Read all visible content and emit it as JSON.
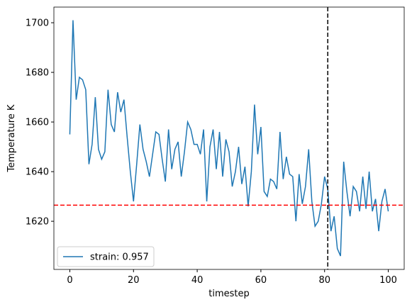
{
  "chart_data": {
    "type": "line",
    "xlabel": "timestep",
    "ylabel": "Temperature K",
    "x": [
      0,
      1,
      2,
      3,
      4,
      5,
      6,
      7,
      8,
      9,
      10,
      11,
      12,
      13,
      14,
      15,
      16,
      17,
      18,
      19,
      20,
      21,
      22,
      23,
      24,
      25,
      26,
      27,
      28,
      29,
      30,
      31,
      32,
      33,
      34,
      35,
      36,
      37,
      38,
      39,
      40,
      41,
      42,
      43,
      44,
      45,
      46,
      47,
      48,
      49,
      50,
      51,
      52,
      53,
      54,
      55,
      56,
      57,
      58,
      59,
      60,
      61,
      62,
      63,
      64,
      65,
      66,
      67,
      68,
      69,
      70,
      71,
      72,
      73,
      74,
      75,
      76,
      77,
      78,
      79,
      80,
      81,
      82,
      83,
      84,
      85,
      86,
      87,
      88,
      89,
      90,
      91,
      92,
      93,
      94,
      95,
      96,
      97,
      98,
      99,
      100
    ],
    "series": [
      {
        "name": "strain: 0.957",
        "color": "#1f77b4",
        "values": [
          1655,
          1701,
          1669,
          1678,
          1677,
          1673,
          1643,
          1651,
          1670,
          1649,
          1645,
          1648,
          1673,
          1659,
          1656,
          1672,
          1664,
          1669,
          1654,
          1640,
          1628,
          1643,
          1659,
          1649,
          1644,
          1638,
          1647,
          1656,
          1655,
          1645,
          1636,
          1657,
          1641,
          1649,
          1652,
          1638,
          1648,
          1660,
          1657,
          1651,
          1651,
          1647,
          1657,
          1628,
          1650,
          1657,
          1641,
          1656,
          1638,
          1653,
          1648,
          1634,
          1640,
          1650,
          1635,
          1642,
          1626,
          1640,
          1667,
          1647,
          1658,
          1632,
          1630,
          1637,
          1636,
          1633,
          1656,
          1637,
          1646,
          1639,
          1638,
          1620,
          1639,
          1627,
          1634,
          1649,
          1628,
          1618,
          1620,
          1627,
          1638,
          1633,
          1616,
          1622,
          1609,
          1606,
          1644,
          1632,
          1622,
          1634,
          1632,
          1624,
          1638,
          1625,
          1640,
          1624,
          1629,
          1616,
          1628,
          1633,
          1624
        ]
      }
    ],
    "hlines": [
      {
        "value": 1626.5,
        "color": "#ff0000"
      }
    ],
    "vlines": [
      {
        "value": 81,
        "color": "#000000"
      }
    ],
    "xlim": [
      -5,
      105
    ],
    "ylim": [
      1600.6,
      1706.3
    ],
    "xticks": [
      0,
      20,
      40,
      60,
      80,
      100
    ],
    "yticks": [
      1620,
      1640,
      1660,
      1680,
      1700
    ],
    "legend": "lower left"
  }
}
